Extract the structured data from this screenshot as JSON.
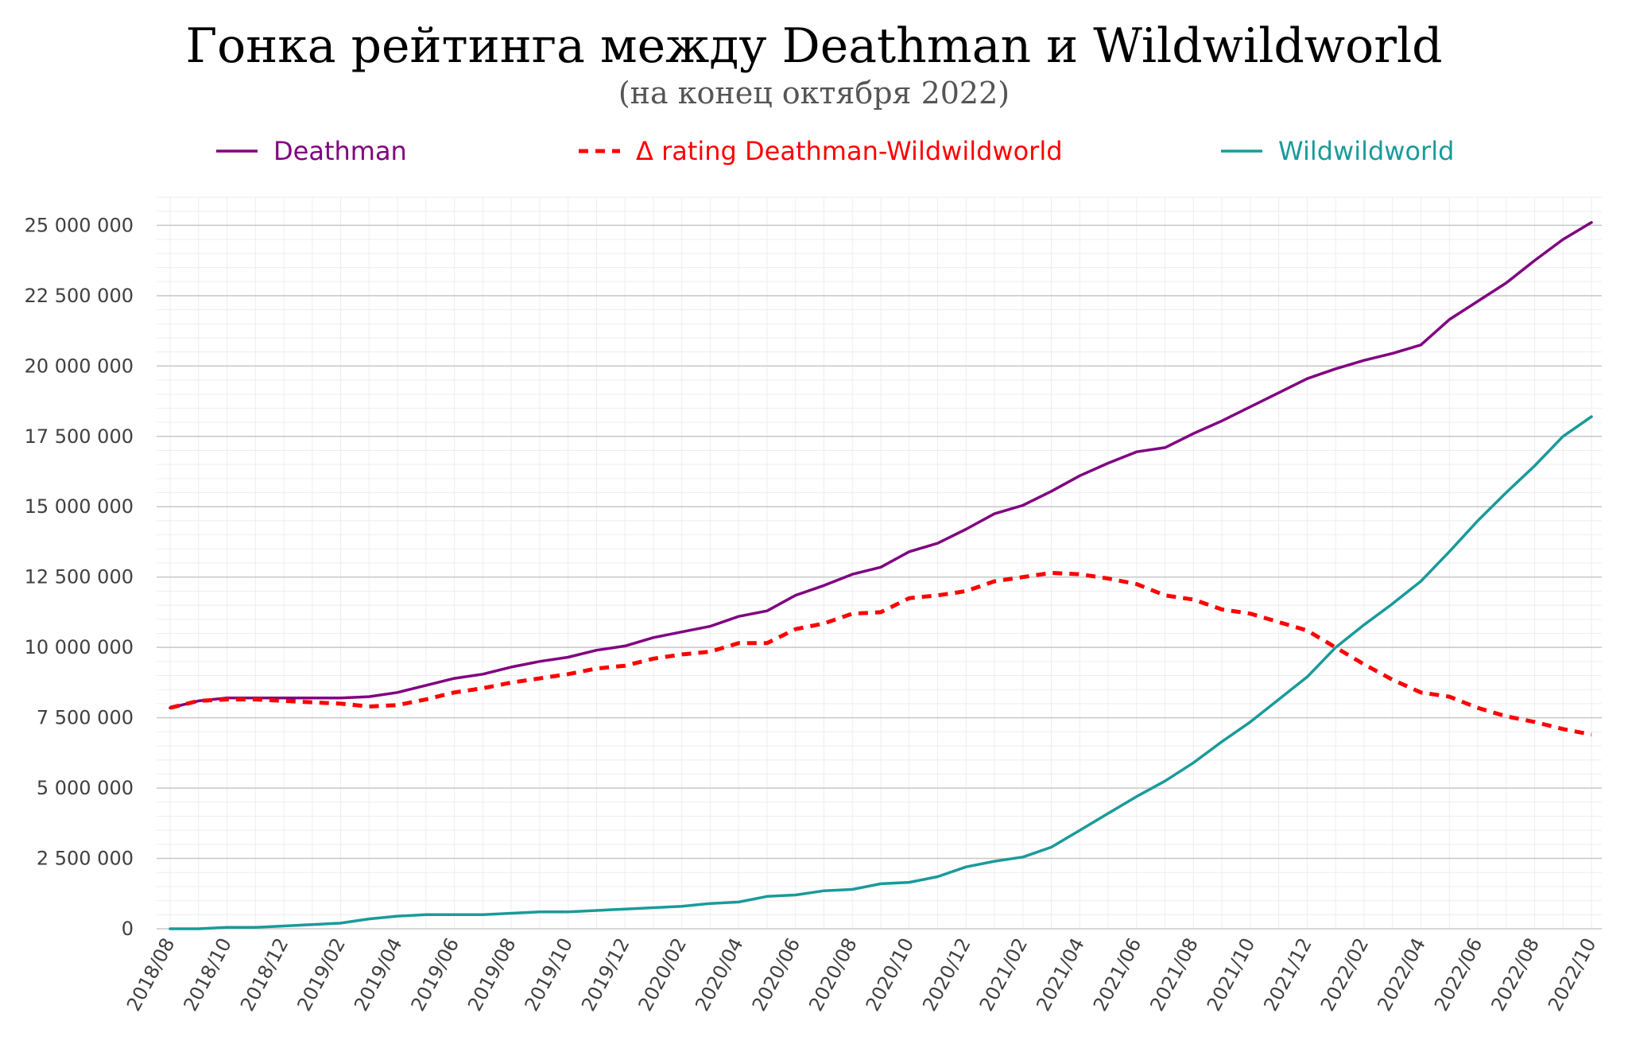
{
  "chart_data": {
    "type": "line",
    "title": "Гонка рейтинга между Deathman и Wildwildworld",
    "subtitle": "(на конец октября 2022)",
    "xlabel": "",
    "ylabel": "",
    "ylim": [
      0,
      26000000
    ],
    "grid": true,
    "legend_position": "top",
    "x": [
      "2018/08",
      "2018/09",
      "2018/10",
      "2018/11",
      "2018/12",
      "2019/01",
      "2019/02",
      "2019/03",
      "2019/04",
      "2019/05",
      "2019/06",
      "2019/07",
      "2019/08",
      "2019/09",
      "2019/10",
      "2019/11",
      "2019/12",
      "2020/01",
      "2020/02",
      "2020/03",
      "2020/04",
      "2020/05",
      "2020/06",
      "2020/07",
      "2020/08",
      "2020/09",
      "2020/10",
      "2020/11",
      "2020/12",
      "2021/01",
      "2021/02",
      "2021/03",
      "2021/04",
      "2021/05",
      "2021/06",
      "2021/07",
      "2021/08",
      "2021/09",
      "2021/10",
      "2021/11",
      "2021/12",
      "2022/01",
      "2022/02",
      "2022/03",
      "2022/04",
      "2022/05",
      "2022/06",
      "2022/07",
      "2022/08",
      "2022/09",
      "2022/10"
    ],
    "x_tick_labels": [
      "2018/08",
      "2018/10",
      "2018/12",
      "2019/02",
      "2019/04",
      "2019/06",
      "2019/08",
      "2019/10",
      "2019/12",
      "2020/02",
      "2020/04",
      "2020/06",
      "2020/08",
      "2020/10",
      "2020/12",
      "2021/02",
      "2021/04",
      "2021/06",
      "2021/08",
      "2021/10",
      "2021/12",
      "2022/02",
      "2022/04",
      "2022/06",
      "2022/08",
      "2022/10"
    ],
    "y_ticks": [
      0,
      2500000,
      5000000,
      7500000,
      10000000,
      12500000,
      15000000,
      17500000,
      20000000,
      22500000,
      25000000
    ],
    "y_tick_labels": [
      "0",
      "2 500 000",
      "5 000 000",
      "7 500 000",
      "10 000 000",
      "12 500 000",
      "15 000 000",
      "17 500 000",
      "20 000 000",
      "22 500 000",
      "25 000 000"
    ],
    "series": [
      {
        "name": "Deathman",
        "color": "#800080",
        "dash": "solid",
        "values": [
          7850000,
          8100000,
          8200000,
          8200000,
          8200000,
          8200000,
          8200000,
          8250000,
          8400000,
          8650000,
          8900000,
          9050000,
          9300000,
          9500000,
          9650000,
          9900000,
          10050000,
          10350000,
          10550000,
          10750000,
          11100000,
          11300000,
          11850000,
          12200000,
          12600000,
          12850000,
          13400000,
          13700000,
          14200000,
          14750000,
          15050000,
          15550000,
          16100000,
          16550000,
          16950000,
          17100000,
          17600000,
          18050000,
          18550000,
          19050000,
          19550000,
          19900000,
          20200000,
          20450000,
          20750000,
          21650000,
          22300000,
          22950000,
          23750000,
          24500000,
          25100000
        ]
      },
      {
        "name": "Δ rating Deathman-Wildwildworld",
        "color": "#ff0000",
        "dash": "dashed",
        "values": [
          7850000,
          8100000,
          8150000,
          8150000,
          8100000,
          8050000,
          8000000,
          7900000,
          7950000,
          8150000,
          8400000,
          8550000,
          8750000,
          8900000,
          9050000,
          9250000,
          9350000,
          9600000,
          9750000,
          9850000,
          10150000,
          10150000,
          10650000,
          10850000,
          11200000,
          11250000,
          11750000,
          11850000,
          12000000,
          12350000,
          12500000,
          12650000,
          12600000,
          12450000,
          12250000,
          11850000,
          11700000,
          11350000,
          11200000,
          10900000,
          10600000,
          10000000,
          9400000,
          8850000,
          8400000,
          8250000,
          7850000,
          7550000,
          7350000,
          7100000,
          6900000
        ]
      },
      {
        "name": "Wildwildworld",
        "color": "#1a9a9a",
        "dash": "solid",
        "values": [
          0,
          0,
          50000,
          50000,
          100000,
          150000,
          200000,
          350000,
          450000,
          500000,
          500000,
          500000,
          550000,
          600000,
          600000,
          650000,
          700000,
          750000,
          800000,
          900000,
          950000,
          1150000,
          1200000,
          1350000,
          1400000,
          1600000,
          1650000,
          1850000,
          2200000,
          2400000,
          2550000,
          2900000,
          3500000,
          4100000,
          4700000,
          5250000,
          5900000,
          6650000,
          7350000,
          8150000,
          8950000,
          10000000,
          10800000,
          11550000,
          12350000,
          13400000,
          14500000,
          15500000,
          16450000,
          17500000,
          18200000
        ]
      }
    ]
  }
}
